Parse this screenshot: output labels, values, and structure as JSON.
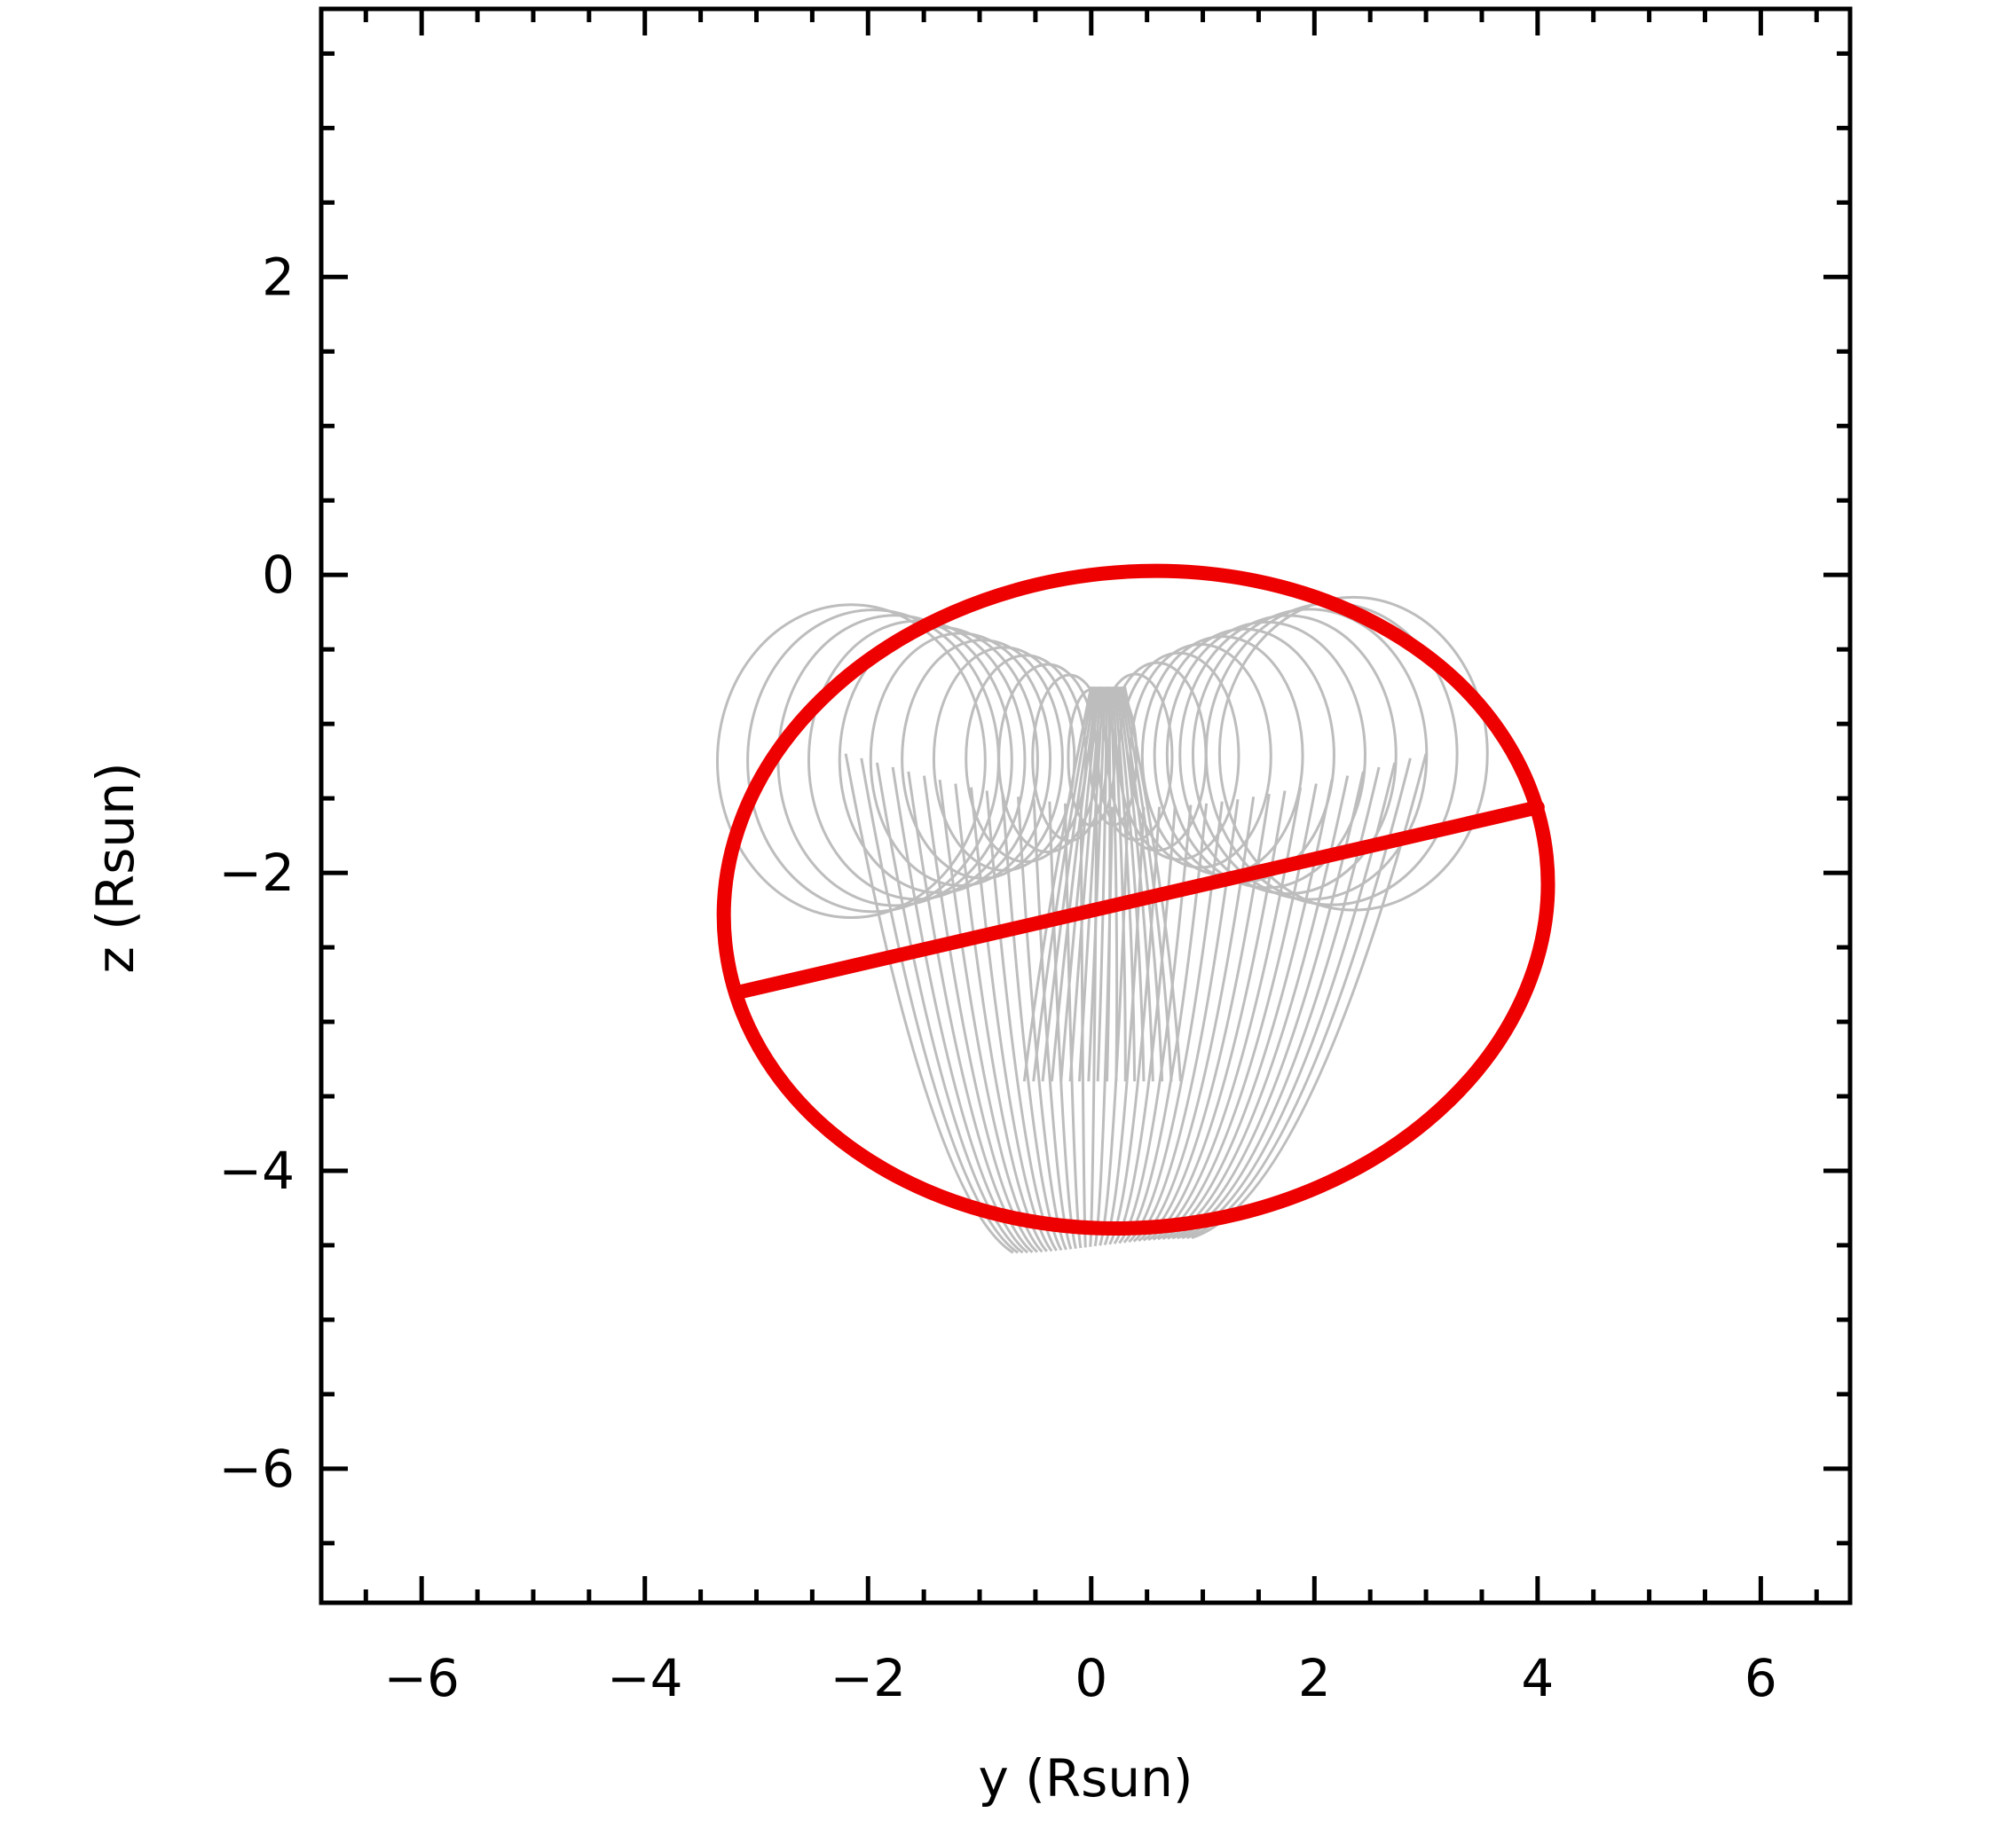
{
  "chart_data": {
    "type": "scatter",
    "title": "",
    "xlabel": "y (Rsun)",
    "ylabel": "z (Rsun)",
    "xlim": [
      -6.9,
      6.8
    ],
    "ylim": [
      -6.9,
      3.8
    ],
    "xticks": [
      -6,
      -4,
      -2,
      0,
      2,
      4,
      6
    ],
    "xtick_labels": [
      "−6",
      "−4",
      "−2",
      "0",
      "2",
      "4",
      "6"
    ],
    "yticks": [
      -6,
      -4,
      -2,
      0,
      2
    ],
    "ytick_labels": [
      "−6",
      "−4",
      "−2",
      "0",
      "2"
    ],
    "minor_step": 0.5,
    "grid": false,
    "background": "#ffffff",
    "series": [
      {
        "kind": "flux-rope-wireframe",
        "color": "#bdbdbd",
        "loop_count": 24,
        "loops": {
          "center_start": [
            -2.15,
            -1.25
          ],
          "center_end": [
            2.35,
            -1.2
          ],
          "radius_x": 1.2,
          "radius_y": 1.05,
          "thin_radius_x": 0.12,
          "thin_radius_y": 0.35
        },
        "legs": {
          "top": [
            0.15,
            -0.75
          ],
          "bottom": [
            0.1,
            -4.5
          ],
          "left": -2.2,
          "right": 3.0,
          "count": 38
        }
      },
      {
        "kind": "fitted-ellipse",
        "color": "#ee0000",
        "center": [
          0.4,
          -2.18
        ],
        "semi_axes": [
          3.7,
          2.2
        ],
        "tilt_deg": 6
      },
      {
        "kind": "major-axis",
        "color": "#ee0000",
        "x": [
          -3.15,
          4.0
        ],
        "y": [
          -2.8,
          -1.56
        ]
      }
    ]
  }
}
